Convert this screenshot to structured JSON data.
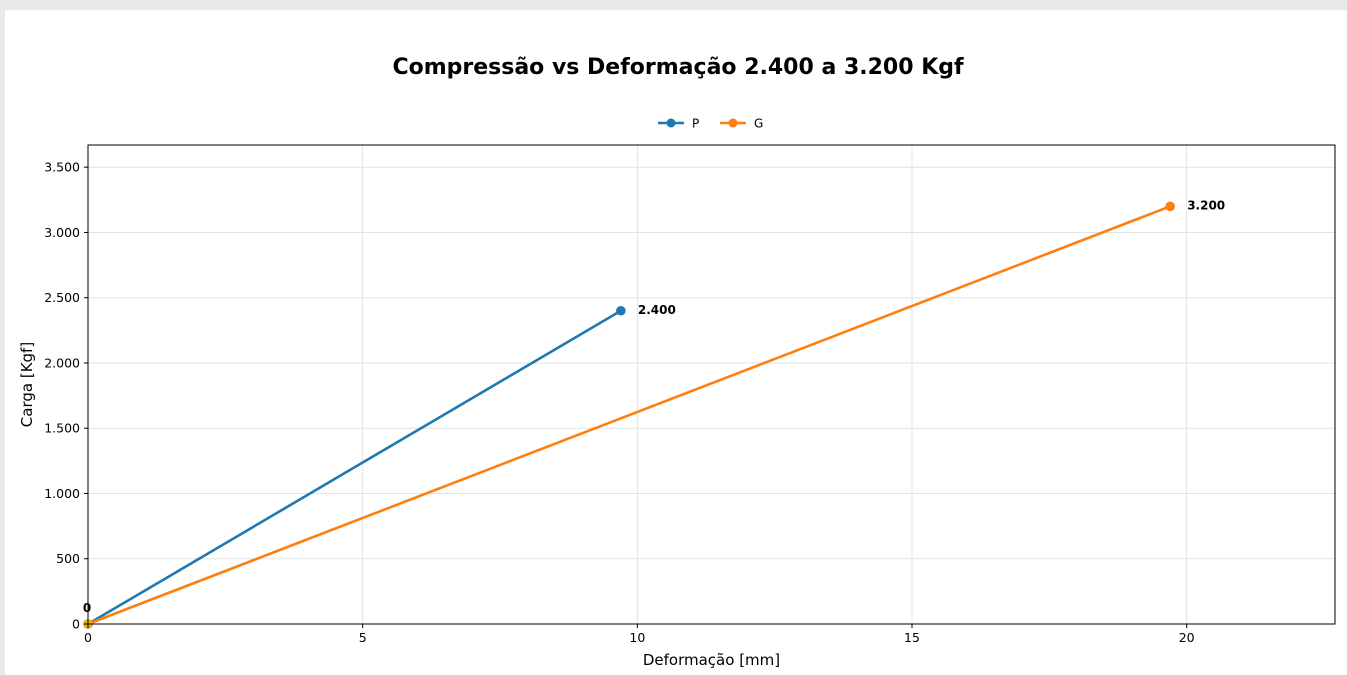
{
  "chart_data": {
    "type": "line",
    "title": "Compressão vs Deformação 2.400 a 3.200 Kgf",
    "xlabel": "Deformação [mm]",
    "ylabel": "Carga [Kgf]",
    "xlim": [
      0,
      22.7
    ],
    "ylim": [
      0,
      3670
    ],
    "x_ticks": [
      0,
      5,
      10,
      15,
      20
    ],
    "y_ticks": [
      0,
      500,
      1000,
      1500,
      2000,
      2500,
      3000,
      3500
    ],
    "y_tick_labels": [
      "0",
      "500",
      "1.000",
      "1.500",
      "2.000",
      "2.500",
      "3.000",
      "3.500"
    ],
    "grid": true,
    "legend_position": "top-center",
    "series": [
      {
        "name": "P",
        "color": "#1f77b4",
        "points": [
          {
            "x": 0,
            "y": 0
          },
          {
            "x": 9.7,
            "y": 2400
          }
        ],
        "end_label": "2.400"
      },
      {
        "name": "G",
        "color": "#ff7f0e",
        "points": [
          {
            "x": 0,
            "y": 0
          },
          {
            "x": 19.7,
            "y": 3200
          }
        ],
        "end_label": "3.200"
      }
    ],
    "annotations": [
      {
        "text": "0",
        "x": 0,
        "y": 0
      }
    ]
  }
}
